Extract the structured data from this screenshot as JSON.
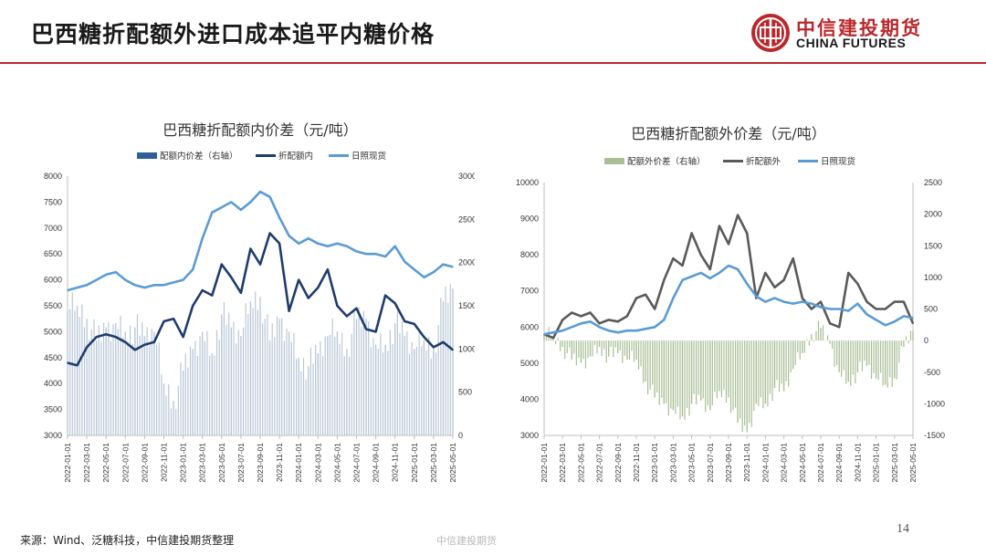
{
  "header": {
    "title": "巴西糖折配额外进口成本追平内糖价格",
    "logo_cn": "中信建投期货",
    "logo_en": "CHINA FUTURES"
  },
  "colors": {
    "brand_red": "#b8292d",
    "spread_in_bars": "#b9c7d8",
    "series_in_line": "#1f3c6e",
    "series_out_line": "#5a5a5a",
    "spot_line": "#5b9bd5",
    "spread_out_bars": "#a9bf96"
  },
  "footer": {
    "source": "来源：Wind、泛糖科技，中信建投期货整理",
    "center": "中信建投期货",
    "page": "14"
  },
  "chart_data": [
    {
      "type": "line",
      "title": "巴西糖折配额内价差（元/吨）",
      "legend_position": "top",
      "grid": false,
      "ylim": [
        3000,
        8000
      ],
      "y_ticks": [
        "8000",
        "7500",
        "7000",
        "6500",
        "6000",
        "5500",
        "5000",
        "4500",
        "4000",
        "3500",
        "3000"
      ],
      "y2lim": [
        0,
        3000
      ],
      "y2_ticks": [
        "3000",
        "2500",
        "2000",
        "1500",
        "1000",
        "500",
        "0"
      ],
      "x_ticks": [
        "2022-01-01",
        "2022-03-01",
        "2022-05-01",
        "2022-07-01",
        "2022-09-01",
        "2022-11-01",
        "2023-01-01",
        "2023-03-01",
        "2023-05-01",
        "2023-07-01",
        "2023-09-01",
        "2023-11-01",
        "2024-01-01",
        "2024-03-01",
        "2024-05-01",
        "2024-07-01",
        "2024-09-01",
        "2024-11-01",
        "2025-01-01",
        "2025-03-01",
        "2025-05-01"
      ],
      "x": [
        "2022-01",
        "2022-02",
        "2022-03",
        "2022-04",
        "2022-05",
        "2022-06",
        "2022-07",
        "2022-08",
        "2022-09",
        "2022-10",
        "2022-11",
        "2022-12",
        "2023-01",
        "2023-02",
        "2023-03",
        "2023-04",
        "2023-05",
        "2023-06",
        "2023-07",
        "2023-08",
        "2023-09",
        "2023-10",
        "2023-11",
        "2023-12",
        "2024-01",
        "2024-02",
        "2024-03",
        "2024-04",
        "2024-05",
        "2024-06",
        "2024-07",
        "2024-08",
        "2024-09",
        "2024-10",
        "2024-11",
        "2024-12",
        "2025-01",
        "2025-02",
        "2025-03",
        "2025-04",
        "2025-05"
      ],
      "series": [
        {
          "name": "配额内价差（右轴）",
          "kind": "bar",
          "axis": "right",
          "values": [
            1450,
            1500,
            1350,
            1100,
            1250,
            1300,
            1200,
            1250,
            1150,
            1200,
            600,
            400,
            750,
            1000,
            1200,
            950,
            1400,
            1250,
            1150,
            1550,
            1600,
            1100,
            1350,
            1200,
            900,
            800,
            950,
            1150,
            1200,
            1000,
            1350,
            1350,
            1050,
            1050,
            1300,
            1150,
            1000,
            1100,
            1000,
            1550,
            1700
          ]
        },
        {
          "name": "折配额内",
          "kind": "line",
          "axis": "left",
          "values": [
            4400,
            4350,
            4700,
            4900,
            4950,
            4900,
            4800,
            4650,
            4750,
            4800,
            5200,
            5250,
            4900,
            5500,
            5800,
            5700,
            6300,
            6050,
            5750,
            6600,
            6300,
            6900,
            6700,
            5400,
            6000,
            5650,
            5850,
            6200,
            5500,
            5300,
            5450,
            5050,
            5000,
            5700,
            5550,
            5200,
            5150,
            4900,
            4700,
            4800,
            4650
          ]
        },
        {
          "name": "日照现货",
          "kind": "line",
          "axis": "left",
          "values": [
            5800,
            5850,
            5900,
            6000,
            6100,
            6150,
            6000,
            5900,
            5850,
            5900,
            5900,
            5950,
            6000,
            6200,
            6800,
            7300,
            7400,
            7500,
            7350,
            7500,
            7700,
            7600,
            7200,
            6850,
            6700,
            6800,
            6700,
            6650,
            6700,
            6650,
            6550,
            6500,
            6500,
            6450,
            6650,
            6350,
            6200,
            6050,
            6150,
            6300,
            6250
          ]
        }
      ]
    },
    {
      "type": "line",
      "title": "巴西糖折配额外价差（元/吨）",
      "legend_position": "top",
      "grid": false,
      "ylim": [
        3000,
        10000
      ],
      "y_ticks": [
        "10000",
        "9000",
        "8000",
        "7000",
        "6000",
        "5000",
        "4000",
        "3000"
      ],
      "y2lim": [
        -1500,
        2500
      ],
      "y2_ticks": [
        "2500",
        "2000",
        "1500",
        "1000",
        "500",
        "0",
        "-500",
        "-1000",
        "-1500"
      ],
      "x_ticks": [
        "2022-01-01",
        "2022-03-01",
        "2022-05-01",
        "2022-07-01",
        "2022-09-01",
        "2022-11-01",
        "2023-01-01",
        "2023-03-01",
        "2023-05-01",
        "2023-07-01",
        "2023-09-01",
        "2023-11-01",
        "2024-01-01",
        "2024-03-01",
        "2024-05-01",
        "2024-07-01",
        "2024-09-01",
        "2024-11-01",
        "2025-01-01",
        "2025-03-01",
        "2025-05-01"
      ],
      "x": [
        "2022-01",
        "2022-02",
        "2022-03",
        "2022-04",
        "2022-05",
        "2022-06",
        "2022-07",
        "2022-08",
        "2022-09",
        "2022-10",
        "2022-11",
        "2022-12",
        "2023-01",
        "2023-02",
        "2023-03",
        "2023-04",
        "2023-05",
        "2023-06",
        "2023-07",
        "2023-08",
        "2023-09",
        "2023-10",
        "2023-11",
        "2023-12",
        "2024-01",
        "2024-02",
        "2024-03",
        "2024-04",
        "2024-05",
        "2024-06",
        "2024-07",
        "2024-08",
        "2024-09",
        "2024-10",
        "2024-11",
        "2024-12",
        "2025-01",
        "2025-02",
        "2025-03",
        "2025-04",
        "2025-05"
      ],
      "series": [
        {
          "name": "配额外价差（右轴）",
          "kind": "bar",
          "axis": "right",
          "values": [
            100,
            50,
            -100,
            -300,
            -350,
            -250,
            -100,
            -250,
            -200,
            -300,
            -300,
            -650,
            -900,
            -1000,
            -1100,
            -1200,
            -1000,
            -950,
            -1100,
            -800,
            -900,
            -1300,
            -1450,
            -1000,
            -1000,
            -750,
            -800,
            -450,
            -200,
            100,
            200,
            -50,
            -500,
            -650,
            -500,
            -400,
            -600,
            -700,
            -600,
            -100,
            150
          ]
        },
        {
          "name": "折配额外",
          "kind": "line",
          "axis": "left",
          "values": [
            5800,
            5700,
            6200,
            6400,
            6300,
            6400,
            6100,
            6200,
            6150,
            6300,
            6800,
            6900,
            6500,
            7300,
            7900,
            7700,
            8600,
            8000,
            7600,
            8800,
            8300,
            9100,
            8600,
            6800,
            7500,
            7100,
            7300,
            7900,
            6800,
            6500,
            6700,
            6100,
            6000,
            7500,
            7200,
            6700,
            6500,
            6500,
            6700,
            6700,
            6100
          ]
        },
        {
          "name": "日照现货",
          "kind": "line",
          "axis": "left",
          "values": [
            5800,
            5850,
            5900,
            6000,
            6100,
            6150,
            6000,
            5900,
            5850,
            5900,
            5900,
            5950,
            6000,
            6200,
            6800,
            7300,
            7400,
            7500,
            7350,
            7500,
            7700,
            7600,
            7200,
            6850,
            6700,
            6800,
            6700,
            6650,
            6700,
            6650,
            6550,
            6500,
            6500,
            6450,
            6650,
            6350,
            6200,
            6050,
            6150,
            6300,
            6250
          ]
        }
      ]
    }
  ]
}
